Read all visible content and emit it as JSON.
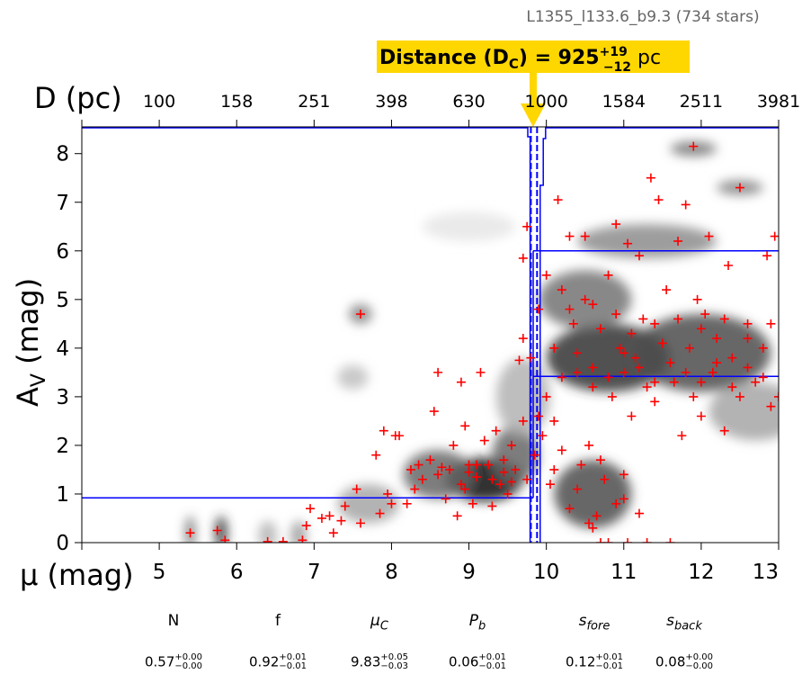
{
  "chart_data": {
    "type": "scatter",
    "title": "L1355_l133.6_b9.3 (734 stars)",
    "highlight": {
      "prefix": "Distance (D",
      "sub": "C",
      "eq": ") = 925",
      "sup": "+19",
      "subv": "−12",
      "unit": " pc"
    },
    "xlabel": "μ (mag)",
    "ylabel": "A",
    "ylabel_sub": "V",
    "ylabel_suffix": " (mag)",
    "top_xlabel": "D (pc)",
    "xlim": [
      4,
      13
    ],
    "ylim": [
      0,
      8.55
    ],
    "xticks": [
      5,
      6,
      7,
      8,
      9,
      10,
      11,
      12,
      13
    ],
    "yticks": [
      0,
      1,
      2,
      3,
      4,
      5,
      6,
      7,
      8
    ],
    "top_ticks": [
      {
        "mu": 5,
        "label": "100"
      },
      {
        "mu": 6,
        "label": "158"
      },
      {
        "mu": 7,
        "label": "251"
      },
      {
        "mu": 8,
        "label": "398"
      },
      {
        "mu": 9,
        "label": "630"
      },
      {
        "mu": 10,
        "label": "1000"
      },
      {
        "mu": 11,
        "label": "1584"
      },
      {
        "mu": 12,
        "label": "2511"
      },
      {
        "mu": 13,
        "label": "3981"
      }
    ],
    "model": {
      "mu_c": 9.83,
      "a_fore": 0.92,
      "a_back": 3.42,
      "a_upper": 6.0,
      "mu_c_lo": 9.8,
      "mu_c_hi": 9.88
    },
    "colors": {
      "points": "#ff0000",
      "model": "#0000ff",
      "highlight": "#ffd700"
    },
    "density_blobs": [
      {
        "mu": 9.2,
        "a": 1.3,
        "smu": 0.5,
        "sa": 0.45,
        "w": 0.95
      },
      {
        "mu": 8.6,
        "a": 1.4,
        "smu": 0.45,
        "sa": 0.5,
        "w": 0.6
      },
      {
        "mu": 9.6,
        "a": 1.8,
        "smu": 0.3,
        "sa": 0.6,
        "w": 0.6
      },
      {
        "mu": 10.8,
        "a": 3.8,
        "smu": 0.8,
        "sa": 0.7,
        "w": 0.8
      },
      {
        "mu": 12.0,
        "a": 3.9,
        "smu": 0.9,
        "sa": 0.8,
        "w": 0.7
      },
      {
        "mu": 10.5,
        "a": 5.0,
        "smu": 0.6,
        "sa": 0.6,
        "w": 0.55
      },
      {
        "mu": 11.3,
        "a": 6.2,
        "smu": 0.9,
        "sa": 0.35,
        "w": 0.45
      },
      {
        "mu": 10.6,
        "a": 1.0,
        "smu": 0.5,
        "sa": 0.7,
        "w": 0.7
      },
      {
        "mu": 9.7,
        "a": 3.0,
        "smu": 0.35,
        "sa": 0.8,
        "w": 0.3
      },
      {
        "mu": 7.6,
        "a": 4.7,
        "smu": 0.15,
        "sa": 0.2,
        "w": 0.5
      },
      {
        "mu": 7.5,
        "a": 3.4,
        "smu": 0.2,
        "sa": 0.25,
        "w": 0.25
      },
      {
        "mu": 11.9,
        "a": 8.1,
        "smu": 0.3,
        "sa": 0.15,
        "w": 0.55
      },
      {
        "mu": 12.5,
        "a": 7.3,
        "smu": 0.3,
        "sa": 0.15,
        "w": 0.5
      },
      {
        "mu": 12.7,
        "a": 2.7,
        "smu": 0.6,
        "sa": 0.6,
        "w": 0.35
      },
      {
        "mu": 9.0,
        "a": 6.5,
        "smu": 0.6,
        "sa": 0.3,
        "w": 0.1
      },
      {
        "mu": 7.7,
        "a": 0.8,
        "smu": 0.4,
        "sa": 0.4,
        "w": 0.35
      },
      {
        "mu": 5.4,
        "a": 0.2,
        "smu": 0.06,
        "sa": 0.35,
        "w": 0.6
      },
      {
        "mu": 5.8,
        "a": 0.2,
        "smu": 0.08,
        "sa": 0.35,
        "w": 0.8
      },
      {
        "mu": 6.4,
        "a": 0.15,
        "smu": 0.12,
        "sa": 0.3,
        "w": 0.3
      },
      {
        "mu": 6.8,
        "a": 0.15,
        "smu": 0.1,
        "sa": 0.3,
        "w": 0.4
      }
    ],
    "points": [
      [
        5.4,
        0.2
      ],
      [
        5.75,
        0.25
      ],
      [
        5.85,
        0.05
      ],
      [
        6.4,
        0.02
      ],
      [
        6.6,
        0.02
      ],
      [
        6.85,
        0.05
      ],
      [
        6.9,
        0.35
      ],
      [
        6.95,
        0.7
      ],
      [
        7.1,
        0.5
      ],
      [
        7.2,
        0.55
      ],
      [
        7.25,
        0.2
      ],
      [
        7.35,
        0.45
      ],
      [
        7.4,
        0.75
      ],
      [
        7.55,
        1.1
      ],
      [
        7.6,
        0.4
      ],
      [
        7.6,
        4.7
      ],
      [
        7.8,
        1.8
      ],
      [
        7.85,
        0.6
      ],
      [
        7.9,
        2.3
      ],
      [
        7.95,
        1.0
      ],
      [
        8.0,
        0.8
      ],
      [
        8.05,
        2.2
      ],
      [
        8.1,
        2.2
      ],
      [
        8.2,
        0.8
      ],
      [
        8.25,
        1.5
      ],
      [
        8.3,
        1.1
      ],
      [
        8.35,
        1.6
      ],
      [
        8.4,
        1.3
      ],
      [
        8.5,
        1.7
      ],
      [
        8.55,
        2.7
      ],
      [
        8.6,
        3.5
      ],
      [
        8.6,
        1.4
      ],
      [
        8.7,
        0.9
      ],
      [
        8.75,
        1.5
      ],
      [
        8.8,
        2.0
      ],
      [
        8.85,
        0.55
      ],
      [
        8.9,
        3.3
      ],
      [
        8.9,
        1.2
      ],
      [
        8.95,
        2.4
      ],
      [
        9.0,
        1.6
      ],
      [
        9.05,
        0.8
      ],
      [
        9.1,
        1.35
      ],
      [
        9.15,
        3.5
      ],
      [
        9.2,
        2.1
      ],
      [
        9.25,
        1.6
      ],
      [
        9.3,
        0.75
      ],
      [
        9.35,
        2.3
      ],
      [
        9.4,
        1.2
      ],
      [
        9.45,
        1.7
      ],
      [
        9.5,
        1.0
      ],
      [
        9.55,
        2.0
      ],
      [
        9.6,
        1.5
      ],
      [
        9.65,
        3.75
      ],
      [
        9.7,
        4.2
      ],
      [
        9.7,
        2.5
      ],
      [
        9.75,
        1.3
      ],
      [
        9.75,
        6.5
      ],
      [
        9.7,
        5.85
      ],
      [
        9.8,
        3.8
      ],
      [
        9.85,
        1.8
      ],
      [
        9.9,
        4.8
      ],
      [
        9.95,
        2.2
      ],
      [
        10.0,
        3.0
      ],
      [
        10.0,
        5.5
      ],
      [
        10.05,
        1.2
      ],
      [
        10.1,
        2.5
      ],
      [
        10.1,
        4.0
      ],
      [
        10.15,
        7.05
      ],
      [
        10.2,
        3.4
      ],
      [
        10.2,
        5.2
      ],
      [
        10.3,
        6.3
      ],
      [
        10.3,
        0.7
      ],
      [
        10.35,
        4.5
      ],
      [
        10.4,
        3.5
      ],
      [
        10.45,
        1.6
      ],
      [
        10.5,
        6.3
      ],
      [
        10.5,
        5.0
      ],
      [
        10.55,
        2.0
      ],
      [
        10.6,
        3.2
      ],
      [
        10.6,
        0.3
      ],
      [
        10.7,
        4.4
      ],
      [
        10.75,
        1.3
      ],
      [
        10.8,
        5.5
      ],
      [
        10.85,
        3.0
      ],
      [
        10.9,
        0.8
      ],
      [
        10.9,
        6.55
      ],
      [
        10.95,
        4.0
      ],
      [
        11.0,
        3.5
      ],
      [
        11.0,
        1.4
      ],
      [
        11.05,
        6.15
      ],
      [
        11.1,
        2.6
      ],
      [
        11.15,
        3.8
      ],
      [
        11.2,
        5.9
      ],
      [
        11.2,
        0.6
      ],
      [
        11.25,
        4.6
      ],
      [
        11.3,
        3.2
      ],
      [
        11.35,
        7.5
      ],
      [
        11.4,
        2.9
      ],
      [
        11.45,
        7.05
      ],
      [
        11.5,
        4.1
      ],
      [
        11.55,
        5.2
      ],
      [
        11.6,
        0.0
      ],
      [
        11.65,
        3.3
      ],
      [
        11.7,
        6.2
      ],
      [
        11.75,
        2.2
      ],
      [
        11.8,
        6.95
      ],
      [
        11.85,
        4.0
      ],
      [
        11.9,
        3.0
      ],
      [
        11.95,
        5.0
      ],
      [
        12.0,
        2.6
      ],
      [
        12.05,
        4.7
      ],
      [
        12.1,
        6.3
      ],
      [
        12.15,
        3.5
      ],
      [
        12.2,
        4.2
      ],
      [
        12.3,
        2.3
      ],
      [
        12.35,
        5.7
      ],
      [
        12.4,
        3.8
      ],
      [
        12.5,
        7.3
      ],
      [
        12.5,
        3.0
      ],
      [
        12.6,
        4.5
      ],
      [
        12.7,
        3.3
      ],
      [
        12.8,
        4.0
      ],
      [
        12.85,
        5.9
      ],
      [
        12.9,
        2.8
      ],
      [
        12.95,
        6.3
      ],
      [
        13.0,
        3.0
      ],
      [
        11.9,
        8.15
      ],
      [
        10.7,
        0.0
      ],
      [
        10.8,
        0.0
      ],
      [
        11.05,
        0.0
      ],
      [
        11.3,
        0.0
      ],
      [
        10.55,
        0.4
      ],
      [
        10.65,
        0.55
      ],
      [
        9.0,
        1.45
      ],
      [
        9.1,
        1.6
      ],
      [
        9.3,
        1.3
      ],
      [
        9.45,
        1.45
      ],
      [
        9.55,
        1.25
      ],
      [
        8.95,
        1.1
      ],
      [
        8.65,
        1.55
      ],
      [
        10.4,
        3.9
      ],
      [
        10.6,
        3.6
      ],
      [
        10.8,
        3.4
      ],
      [
        11.0,
        3.9
      ],
      [
        11.2,
        3.6
      ],
      [
        11.4,
        3.3
      ],
      [
        11.6,
        3.7
      ],
      [
        11.8,
        3.5
      ],
      [
        12.0,
        3.3
      ],
      [
        12.2,
        3.7
      ],
      [
        12.4,
        3.2
      ],
      [
        12.6,
        3.6
      ],
      [
        12.8,
        3.4
      ],
      [
        10.3,
        4.8
      ],
      [
        10.6,
        4.9
      ],
      [
        10.9,
        4.7
      ],
      [
        11.1,
        4.3
      ],
      [
        11.4,
        4.5
      ],
      [
        11.7,
        4.6
      ],
      [
        12.0,
        4.4
      ],
      [
        12.3,
        4.6
      ],
      [
        12.6,
        4.2
      ],
      [
        12.9,
        4.5
      ],
      [
        10.2,
        1.9
      ],
      [
        10.4,
        1.1
      ],
      [
        10.7,
        1.7
      ],
      [
        11.0,
        0.9
      ],
      [
        9.9,
        2.6
      ],
      [
        10.1,
        1.5
      ]
    ]
  },
  "params": [
    {
      "name": "N",
      "value": "0.57",
      "plus": "+0.00",
      "minus": "−0.00"
    },
    {
      "name": "f",
      "value": "0.92",
      "plus": "+0.01",
      "minus": "−0.01"
    },
    {
      "name": "μ",
      "sub": "C",
      "value": "9.83",
      "plus": "+0.05",
      "minus": "−0.03"
    },
    {
      "name": "P",
      "sub": "b",
      "value": "0.06",
      "plus": "+0.01",
      "minus": "−0.01"
    },
    {
      "name": "s",
      "sub": "fore",
      "value": "0.12",
      "plus": "+0.01",
      "minus": "−0.01"
    },
    {
      "name": "s",
      "sub": "back",
      "value": "0.08",
      "plus": "+0.00",
      "minus": "−0.00"
    }
  ]
}
